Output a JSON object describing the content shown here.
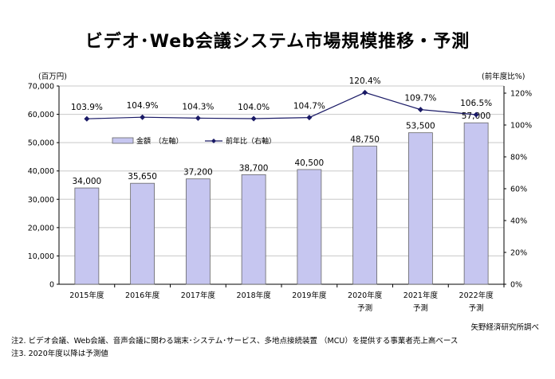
{
  "chart_data": {
    "type": "bar+line",
    "title": "ビデオ･Web会議システム市場規模推移・予測",
    "y_left_unit": "(百万円)",
    "y_right_unit": "(前年度比%)",
    "ylim_left": [
      0,
      70000
    ],
    "ylim_right": [
      0,
      120
    ],
    "y_left_ticks": [
      "0",
      "10,000",
      "20,000",
      "30,000",
      "40,000",
      "50,000",
      "60,000",
      "70,000"
    ],
    "y_right_ticks": [
      "0%",
      "20%",
      "40%",
      "60%",
      "80%",
      "100%",
      "120%"
    ],
    "categories": [
      [
        "2015年度"
      ],
      [
        "2016年度"
      ],
      [
        "2017年度"
      ],
      [
        "2018年度"
      ],
      [
        "2019年度"
      ],
      [
        "2020年度",
        "予測"
      ],
      [
        "2021年度",
        "予測"
      ],
      [
        "2022年度",
        "予測"
      ]
    ],
    "series": [
      {
        "name": "金額　（左軸）",
        "type": "bar",
        "axis": "left",
        "values": [
          34000,
          35650,
          37200,
          38700,
          40500,
          48750,
          53500,
          57000
        ],
        "labels": [
          "34,000",
          "35,650",
          "37,200",
          "38,700",
          "40,500",
          "48,750",
          "53,500",
          "57,000"
        ],
        "color": "#c6c6f0"
      },
      {
        "name": "前年比（右軸）",
        "type": "line",
        "axis": "right",
        "values": [
          103.9,
          104.9,
          104.3,
          104.0,
          104.7,
          120.4,
          109.7,
          106.5
        ],
        "labels": [
          "103.9%",
          "104.9%",
          "104.3%",
          "104.0%",
          "104.7%",
          "120.4%",
          "109.7%",
          "106.5%"
        ],
        "color": "#1a1a66"
      }
    ],
    "grid": true,
    "legend_position": "top-center"
  },
  "notes": [
    "注2.  ビデオ会議、Web会議、音声会議に関わる端末･システム･サービス、多地点接続装置 （MCU）を提供する事業者売上高ベース",
    "注3.  2020年度以降は予測値"
  ],
  "source": "矢野経済研究所調べ"
}
